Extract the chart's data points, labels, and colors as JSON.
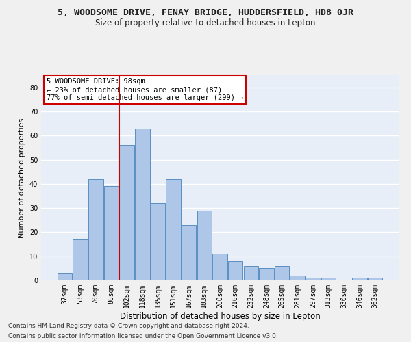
{
  "title": "5, WOODSOME DRIVE, FENAY BRIDGE, HUDDERSFIELD, HD8 0JR",
  "subtitle": "Size of property relative to detached houses in Lepton",
  "xlabel": "Distribution of detached houses by size in Lepton",
  "ylabel": "Number of detached properties",
  "categories": [
    "37sqm",
    "53sqm",
    "70sqm",
    "86sqm",
    "102sqm",
    "118sqm",
    "135sqm",
    "151sqm",
    "167sqm",
    "183sqm",
    "200sqm",
    "216sqm",
    "232sqm",
    "248sqm",
    "265sqm",
    "281sqm",
    "297sqm",
    "313sqm",
    "330sqm",
    "346sqm",
    "362sqm"
  ],
  "values": [
    3,
    17,
    42,
    39,
    56,
    63,
    32,
    42,
    23,
    29,
    11,
    8,
    6,
    5,
    6,
    2,
    1,
    1,
    0,
    1,
    1
  ],
  "bar_color": "#aec6e8",
  "bar_edge_color": "#5a8fc2",
  "vline_index": 4,
  "vline_color": "#cc0000",
  "annotation_text": "5 WOODSOME DRIVE: 98sqm\n← 23% of detached houses are smaller (87)\n77% of semi-detached houses are larger (299) →",
  "annotation_box_color": "#ffffff",
  "annotation_box_edge": "#cc0000",
  "ylim": [
    0,
    85
  ],
  "yticks": [
    0,
    10,
    20,
    30,
    40,
    50,
    60,
    70,
    80
  ],
  "background_color": "#e8eef8",
  "grid_color": "#ffffff",
  "footer_line1": "Contains HM Land Registry data © Crown copyright and database right 2024.",
  "footer_line2": "Contains public sector information licensed under the Open Government Licence v3.0.",
  "title_fontsize": 9.5,
  "subtitle_fontsize": 8.5,
  "xlabel_fontsize": 8.5,
  "ylabel_fontsize": 8,
  "tick_fontsize": 7,
  "annotation_fontsize": 7.5,
  "footer_fontsize": 6.5
}
